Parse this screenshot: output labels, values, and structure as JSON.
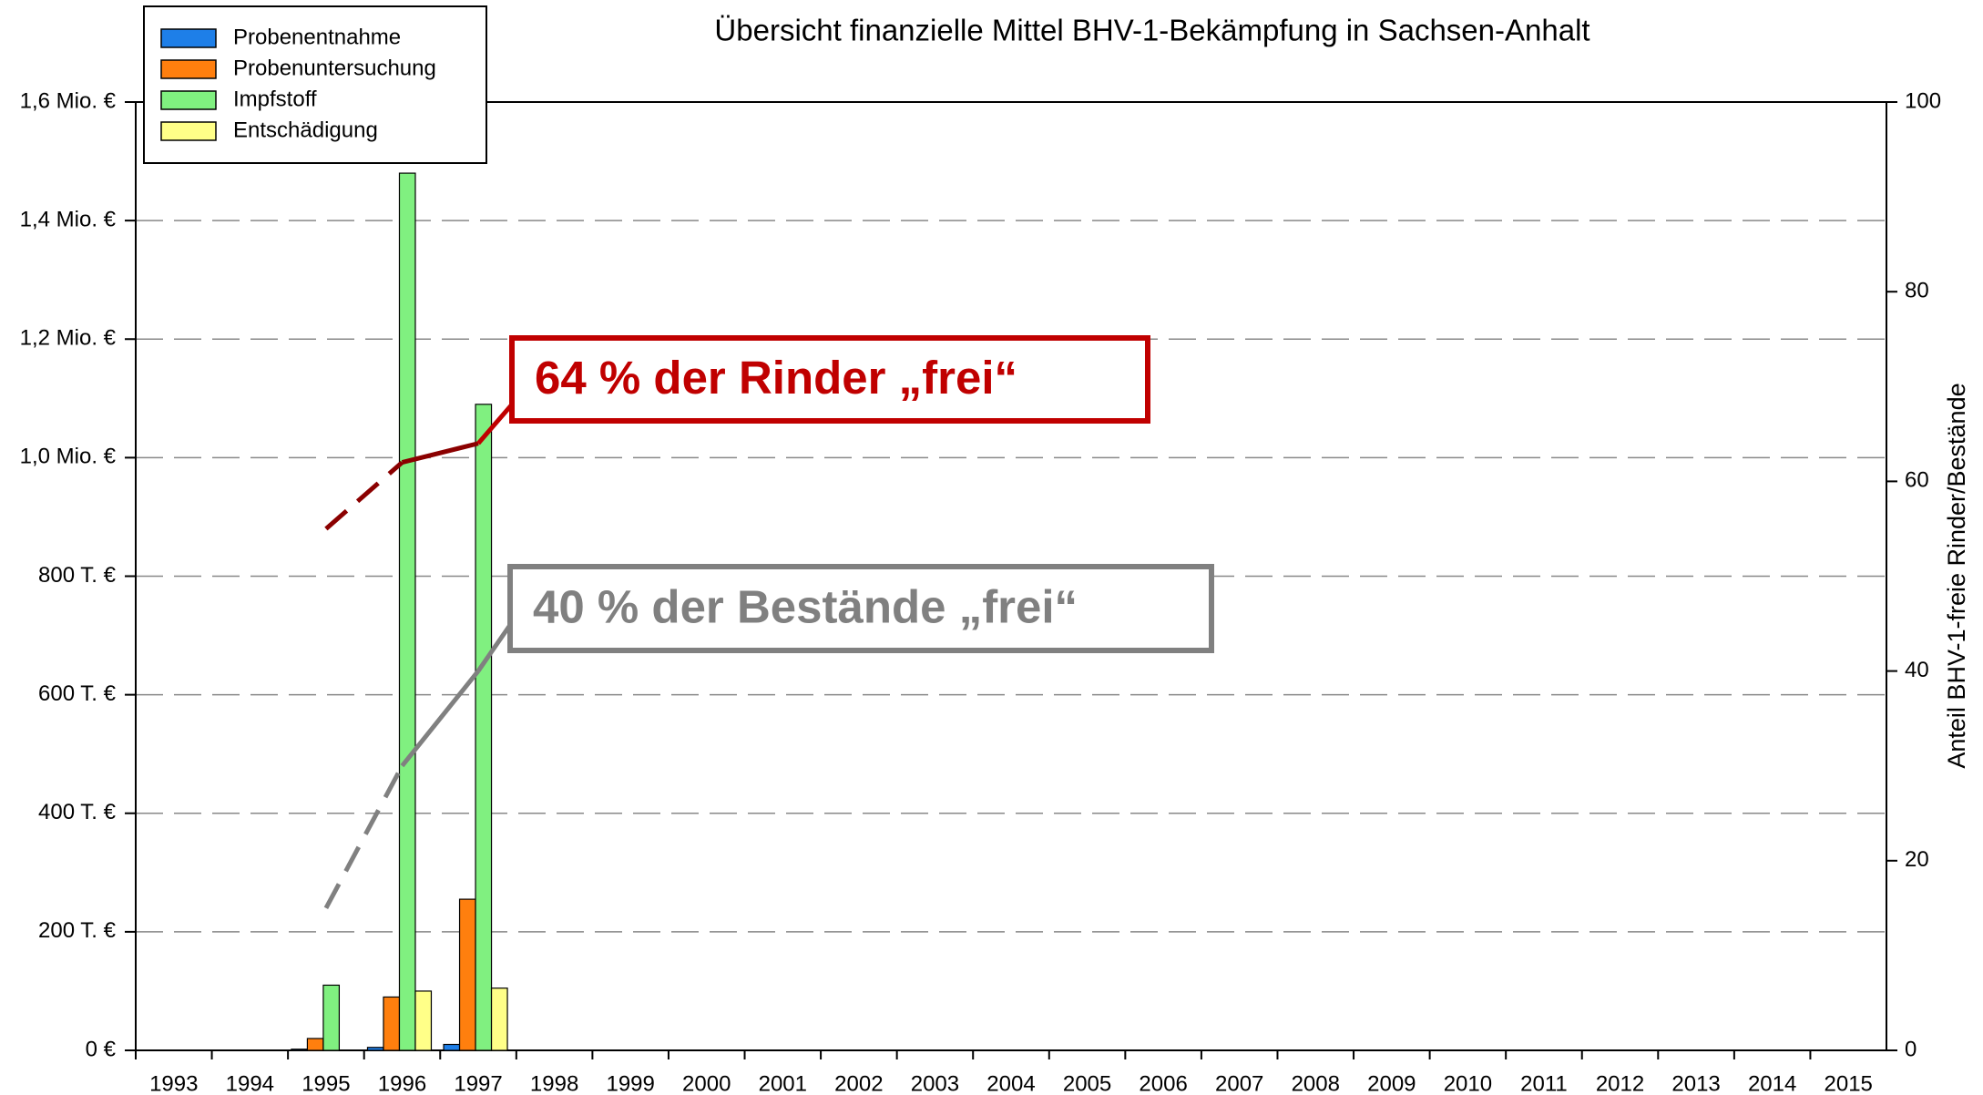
{
  "chart_data": {
    "type": "bar",
    "title": "Übersicht finanzielle Mittel BHV-1-Bekämpfung in Sachsen-Anhalt",
    "y2_label": "Anteil BHV-1-freie Rinder/Bestände",
    "categories": [
      "1993",
      "1994",
      "1995",
      "1996",
      "1997",
      "1998",
      "1999",
      "2000",
      "2001",
      "2002",
      "2003",
      "2004",
      "2005",
      "2006",
      "2007",
      "2008",
      "2009",
      "2010",
      "2011",
      "2012",
      "2013",
      "2014",
      "2015"
    ],
    "series": [
      {
        "name": "Probenentnahme",
        "color": "#1e7fe8",
        "values": [
          0,
          0,
          2000,
          5000,
          10000,
          0,
          0,
          0,
          0,
          0,
          0,
          0,
          0,
          0,
          0,
          0,
          0,
          0,
          0,
          0,
          0,
          0,
          0
        ]
      },
      {
        "name": "Probenuntersuchung",
        "color": "#ff7f0e",
        "values": [
          0,
          0,
          20000,
          90000,
          255000,
          0,
          0,
          0,
          0,
          0,
          0,
          0,
          0,
          0,
          0,
          0,
          0,
          0,
          0,
          0,
          0,
          0,
          0
        ]
      },
      {
        "name": "Impfstoff",
        "color": "#80f080",
        "values": [
          0,
          0,
          110000,
          1480000,
          1090000,
          0,
          0,
          0,
          0,
          0,
          0,
          0,
          0,
          0,
          0,
          0,
          0,
          0,
          0,
          0,
          0,
          0,
          0
        ]
      },
      {
        "name": "Entschädigung",
        "color": "#ffff88",
        "values": [
          0,
          0,
          0,
          100000,
          105000,
          0,
          0,
          0,
          0,
          0,
          0,
          0,
          0,
          0,
          0,
          0,
          0,
          0,
          0,
          0,
          0,
          0,
          0
        ]
      }
    ],
    "lines": [
      {
        "type": "line",
        "axis": "y2",
        "color": "#8b0000",
        "dashed_segments": [
          0
        ],
        "values": [
          null,
          null,
          55,
          62,
          64,
          null,
          null,
          null,
          null,
          null,
          null,
          null,
          null,
          null,
          null,
          null,
          null,
          null,
          null,
          null,
          null,
          null,
          null
        ]
      },
      {
        "type": "line",
        "axis": "y2",
        "color": "#808080",
        "dashed_segments": [
          0
        ],
        "values": [
          null,
          null,
          15,
          30,
          40,
          null,
          null,
          null,
          null,
          null,
          null,
          null,
          null,
          null,
          null,
          null,
          null,
          null,
          null,
          null,
          null,
          null,
          null
        ]
      }
    ],
    "annotations": [
      {
        "text": "64 % der Rinder „frei“",
        "color": "#c00000"
      },
      {
        "text": "40 % der Bestände „frei“",
        "color": "#808080"
      }
    ],
    "ylim": [
      0,
      1600000
    ],
    "yticks": [
      {
        "value": 0,
        "label": "0 €"
      },
      {
        "value": 200000,
        "label": "200 T. €"
      },
      {
        "value": 400000,
        "label": "400 T. €"
      },
      {
        "value": 600000,
        "label": "600 T. €"
      },
      {
        "value": 800000,
        "label": "800 T. €"
      },
      {
        "value": 1000000,
        "label": "1,0 Mio. €"
      },
      {
        "value": 1200000,
        "label": "1,2 Mio. €"
      },
      {
        "value": 1400000,
        "label": "1,4 Mio. €"
      },
      {
        "value": 1600000,
        "label": "1,6 Mio. €"
      }
    ],
    "y2lim": [
      0,
      100
    ],
    "y2ticks": [
      0,
      20,
      40,
      60,
      80,
      100
    ],
    "grid": true
  }
}
